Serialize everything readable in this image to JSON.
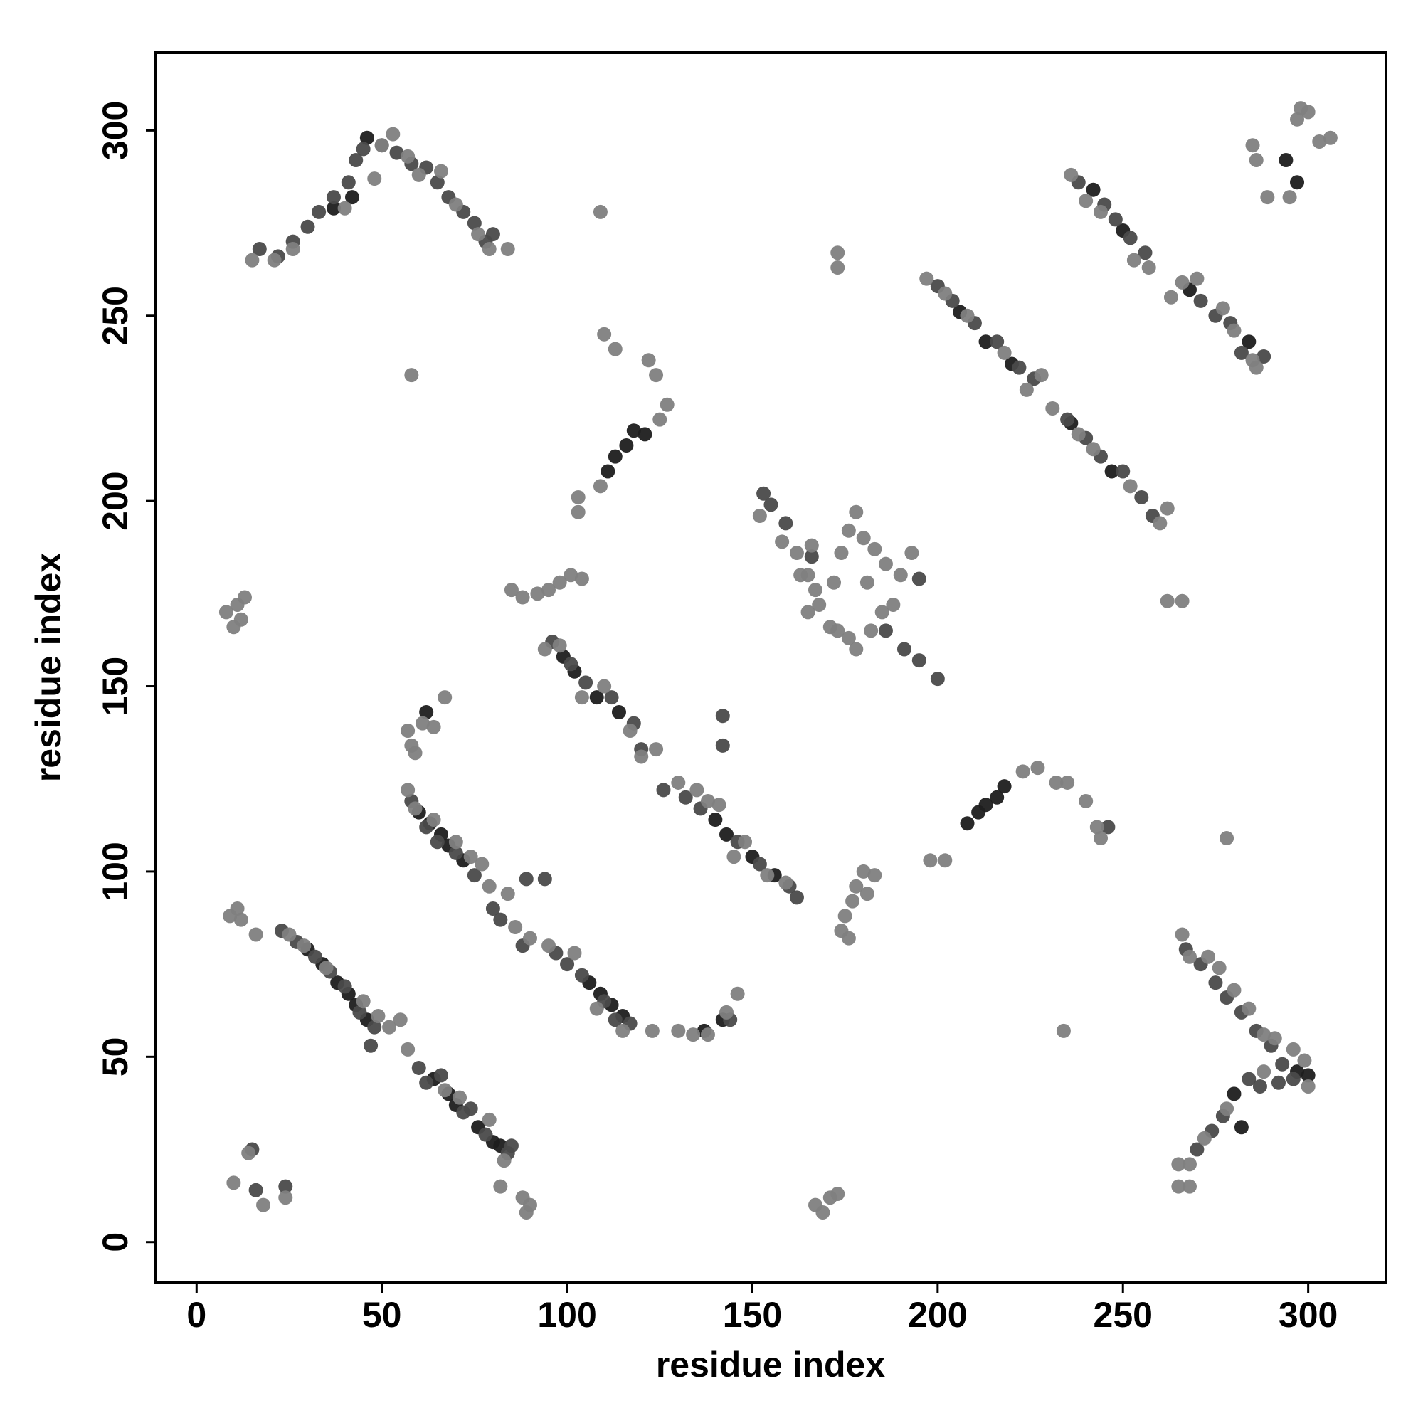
{
  "chart_data": {
    "type": "scatter",
    "x_label": "residue index",
    "y_label": "residue index",
    "xlim": [
      -11,
      321
    ],
    "ylim": [
      -11,
      321
    ],
    "xticks": [
      0,
      50,
      100,
      150,
      200,
      250,
      300
    ],
    "yticks": [
      0,
      50,
      100,
      150,
      200,
      250,
      300
    ],
    "series": [
      {
        "color": "#1e1e1e",
        "x": [
          30,
          34,
          38,
          41,
          43,
          46,
          64,
          68,
          70,
          76,
          80,
          82,
          60,
          63,
          66,
          68,
          72,
          106,
          109,
          112,
          115,
          99,
          102,
          108,
          114,
          140,
          143,
          150,
          156,
          111,
          113,
          116,
          118,
          121,
          208,
          211,
          213,
          216,
          218,
          206,
          213,
          220,
          236,
          247,
          242,
          250,
          268,
          284,
          297,
          294,
          297,
          300,
          280,
          282,
          46,
          42,
          37,
          62,
          137,
          142
        ],
        "y": [
          79,
          75,
          70,
          67,
          64,
          60,
          44,
          40,
          37,
          31,
          27,
          26,
          116,
          113,
          110,
          107,
          103,
          70,
          67,
          64,
          61,
          158,
          154,
          147,
          143,
          114,
          110,
          104,
          99,
          208,
          212,
          215,
          219,
          218,
          113,
          116,
          118,
          120,
          123,
          251,
          243,
          237,
          221,
          208,
          284,
          273,
          257,
          243,
          286,
          292,
          46,
          45,
          40,
          31,
          298,
          282,
          279,
          143,
          57,
          60
        ]
      },
      {
        "color": "#4a4a4a",
        "x": [
          23,
          27,
          32,
          36,
          40,
          44,
          48,
          47,
          60,
          62,
          66,
          72,
          74,
          78,
          84,
          85,
          58,
          62,
          65,
          70,
          75,
          80,
          82,
          88,
          89,
          97,
          100,
          104,
          110,
          113,
          117,
          96,
          101,
          105,
          112,
          118,
          120,
          126,
          132,
          136,
          146,
          152,
          160,
          162,
          142,
          142,
          200,
          204,
          210,
          216,
          222,
          226,
          235,
          240,
          244,
          250,
          255,
          258,
          238,
          245,
          248,
          252,
          256,
          271,
          275,
          279,
          282,
          288,
          17,
          22,
          26,
          30,
          33,
          37,
          41,
          43,
          45,
          50,
          54,
          58,
          62,
          65,
          68,
          72,
          75,
          78,
          80,
          267,
          271,
          275,
          278,
          282,
          286,
          290,
          293,
          296,
          292,
          270,
          274,
          277,
          284,
          287,
          153,
          155,
          159,
          166,
          186,
          191,
          195,
          200,
          195,
          15,
          16,
          24,
          94,
          144,
          246
        ],
        "y": [
          84,
          81,
          77,
          73,
          69,
          62,
          58,
          53,
          47,
          43,
          45,
          35,
          36,
          29,
          24,
          26,
          119,
          112,
          108,
          105,
          99,
          90,
          87,
          80,
          98,
          78,
          75,
          72,
          65,
          60,
          59,
          162,
          156,
          151,
          147,
          140,
          133,
          122,
          120,
          117,
          108,
          102,
          96,
          93,
          142,
          134,
          258,
          254,
          248,
          243,
          236,
          233,
          222,
          217,
          212,
          208,
          201,
          196,
          286,
          280,
          276,
          271,
          267,
          254,
          250,
          248,
          240,
          239,
          268,
          266,
          270,
          274,
          278,
          282,
          286,
          292,
          295,
          296,
          294,
          291,
          290,
          286,
          282,
          278,
          275,
          270,
          272,
          79,
          75,
          70,
          66,
          62,
          57,
          53,
          48,
          44,
          43,
          25,
          30,
          34,
          44,
          42,
          202,
          199,
          194,
          185,
          165,
          160,
          157,
          152,
          179,
          25,
          14,
          15,
          98,
          60,
          112
        ]
      },
      {
        "color": "#808080",
        "x": [
          25,
          29,
          35,
          45,
          49,
          52,
          55,
          57,
          67,
          71,
          79,
          83,
          82,
          57,
          59,
          64,
          70,
          74,
          77,
          79,
          84,
          86,
          90,
          95,
          102,
          108,
          115,
          123,
          94,
          98,
          104,
          110,
          117,
          120,
          124,
          130,
          135,
          138,
          141,
          145,
          148,
          154,
          159,
          197,
          202,
          208,
          218,
          224,
          228,
          231,
          238,
          242,
          252,
          260,
          262,
          236,
          240,
          244,
          253,
          257,
          263,
          266,
          270,
          277,
          280,
          285,
          286,
          15,
          21,
          26,
          40,
          48,
          50,
          53,
          57,
          60,
          66,
          70,
          76,
          79,
          84,
          109,
          125,
          127,
          122,
          124,
          110,
          113,
          103,
          103,
          109,
          58,
          198,
          202,
          223,
          227,
          232,
          235,
          240,
          244,
          243,
          278,
          234,
          266,
          268,
          273,
          276,
          280,
          284,
          288,
          291,
          296,
          299,
          300,
          265,
          268,
          265,
          268,
          272,
          278,
          288,
          152,
          158,
          162,
          165,
          167,
          168,
          165,
          172,
          174,
          176,
          178,
          180,
          183,
          186,
          190,
          193,
          171,
          176,
          178,
          182,
          185,
          188,
          181,
          173,
          163,
          166,
          8,
          10,
          11,
          13,
          12,
          9,
          11,
          12,
          16,
          14,
          10,
          18,
          24,
          88,
          90,
          89,
          167,
          169,
          171,
          173,
          175,
          174,
          176,
          177,
          178,
          180,
          181,
          183,
          85,
          88,
          92,
          95,
          98,
          101,
          104,
          57,
          58,
          59,
          61,
          64,
          67,
          130,
          134,
          138,
          143,
          146,
          262,
          266,
          173,
          173,
          297,
          298,
          303,
          306,
          285,
          286,
          295,
          289,
          300
        ],
        "y": [
          83,
          80,
          74,
          65,
          61,
          58,
          60,
          52,
          41,
          39,
          33,
          22,
          15,
          122,
          117,
          114,
          108,
          104,
          102,
          96,
          94,
          85,
          82,
          80,
          78,
          63,
          57,
          57,
          160,
          161,
          147,
          150,
          138,
          131,
          133,
          124,
          122,
          119,
          118,
          104,
          108,
          99,
          97,
          260,
          256,
          250,
          240,
          230,
          234,
          225,
          218,
          214,
          204,
          194,
          198,
          288,
          281,
          278,
          265,
          263,
          255,
          259,
          260,
          252,
          246,
          238,
          236,
          265,
          265,
          268,
          279,
          287,
          296,
          299,
          293,
          288,
          289,
          280,
          272,
          268,
          268,
          204,
          222,
          226,
          238,
          234,
          245,
          241,
          197,
          201,
          278,
          234,
          103,
          103,
          127,
          128,
          124,
          124,
          119,
          109,
          112,
          109,
          57,
          83,
          77,
          77,
          74,
          68,
          63,
          56,
          55,
          52,
          49,
          42,
          21,
          21,
          15,
          15,
          28,
          36,
          46,
          196,
          189,
          186,
          180,
          176,
          172,
          170,
          178,
          186,
          192,
          197,
          190,
          187,
          183,
          180,
          186,
          166,
          163,
          160,
          165,
          170,
          172,
          178,
          165,
          180,
          188,
          170,
          166,
          172,
          174,
          168,
          88,
          90,
          87,
          83,
          24,
          16,
          10,
          12,
          12,
          10,
          8,
          10,
          8,
          12,
          13,
          88,
          84,
          82,
          92,
          96,
          100,
          94,
          99,
          176,
          174,
          175,
          176,
          178,
          180,
          179,
          138,
          134,
          132,
          140,
          139,
          147,
          57,
          56,
          56,
          62,
          67,
          173,
          173,
          267,
          263,
          303,
          306,
          297,
          298,
          296,
          292,
          282,
          282,
          305
        ]
      }
    ]
  }
}
